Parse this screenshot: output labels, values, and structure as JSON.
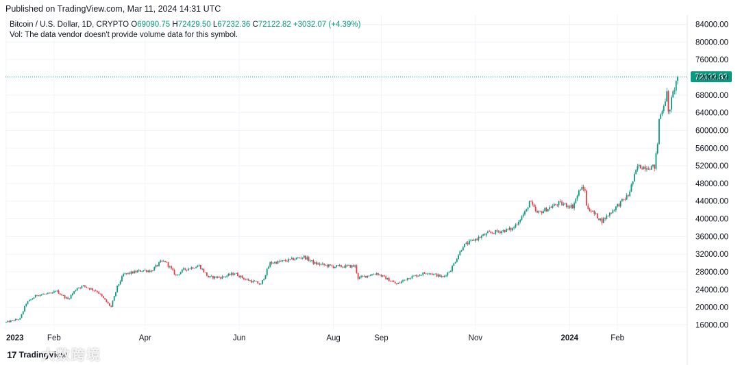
{
  "published": "Published on TradingView.com, Mar 11, 2024 14:31 UTC",
  "legend": {
    "symbol": "Bitcoin / U.S. Dollar, 1D, CRYPTO",
    "open_label": "O",
    "open": "69090.75",
    "high_label": "H",
    "high": "72429.50",
    "low_label": "L",
    "low": "67232.36",
    "close_label": "C",
    "close": "72122.82",
    "change": "+3032.07 (+4.39%)"
  },
  "volume_note": "Vol: The data vendor doesn't provide volume data for this symbol.",
  "logo_text": "TradingView",
  "watermark_text": "大数跨境",
  "colors": {
    "up": "#089981",
    "down": "#f23645",
    "grid": "#f0f3fa",
    "axis_text": "#131722",
    "price_label_bg": "#089981"
  },
  "chart_data": {
    "type": "candlestick",
    "title": "Bitcoin / U.S. Dollar, 1D, CRYPTO",
    "ylim": [
      13000,
      86000
    ],
    "y_ticks": [
      "84000.00",
      "80000.00",
      "76000.00",
      "72000.00",
      "68000.00",
      "64000.00",
      "60000.00",
      "56000.00",
      "52000.00",
      "48000.00",
      "44000.00",
      "40000.00",
      "36000.00",
      "32000.00",
      "28000.00",
      "24000.00",
      "20000.00",
      "16000.00"
    ],
    "x_ticks": [
      {
        "label": "2023",
        "date": "2023-01-01",
        "bold": true
      },
      {
        "label": "Feb",
        "date": "2023-02-01",
        "bold": false
      },
      {
        "label": "Apr",
        "date": "2023-04-01",
        "bold": false
      },
      {
        "label": "Jun",
        "date": "2023-06-01",
        "bold": false
      },
      {
        "label": "Aug",
        "date": "2023-08-01",
        "bold": false
      },
      {
        "label": "Sep",
        "date": "2023-09-01",
        "bold": false
      },
      {
        "label": "Nov",
        "date": "2023-11-01",
        "bold": false
      },
      {
        "label": "2024",
        "date": "2024-01-01",
        "bold": true
      },
      {
        "label": "Feb",
        "date": "2024-02-01",
        "bold": false
      }
    ],
    "last_price": 72122.82,
    "last_price_label": "72122.82",
    "close_path": [
      [
        "2023-01-01",
        16600
      ],
      [
        "2023-01-10",
        17400
      ],
      [
        "2023-01-14",
        20900
      ],
      [
        "2023-01-21",
        22800
      ],
      [
        "2023-01-31",
        23100
      ],
      [
        "2023-02-02",
        23800
      ],
      [
        "2023-02-10",
        21800
      ],
      [
        "2023-02-16",
        24400
      ],
      [
        "2023-02-20",
        24800
      ],
      [
        "2023-03-01",
        23600
      ],
      [
        "2023-03-09",
        20400
      ],
      [
        "2023-03-10",
        20100
      ],
      [
        "2023-03-14",
        24600
      ],
      [
        "2023-03-18",
        27400
      ],
      [
        "2023-03-31",
        28400
      ],
      [
        "2023-04-05",
        28200
      ],
      [
        "2023-04-11",
        30200
      ],
      [
        "2023-04-14",
        30400
      ],
      [
        "2023-04-21",
        27200
      ],
      [
        "2023-04-26",
        28500
      ],
      [
        "2023-05-06",
        29400
      ],
      [
        "2023-05-12",
        26800
      ],
      [
        "2023-05-21",
        26800
      ],
      [
        "2023-05-29",
        27700
      ],
      [
        "2023-06-05",
        26300
      ],
      [
        "2023-06-12",
        25600
      ],
      [
        "2023-06-15",
        25100
      ],
      [
        "2023-06-21",
        30000
      ],
      [
        "2023-07-01",
        30500
      ],
      [
        "2023-07-13",
        31400
      ],
      [
        "2023-07-20",
        29900
      ],
      [
        "2023-08-01",
        29200
      ],
      [
        "2023-08-15",
        29300
      ],
      [
        "2023-08-17",
        26600
      ],
      [
        "2023-08-29",
        27700
      ],
      [
        "2023-09-11",
        25200
      ],
      [
        "2023-09-18",
        26600
      ],
      [
        "2023-10-01",
        27900
      ],
      [
        "2023-10-11",
        26800
      ],
      [
        "2023-10-16",
        28500
      ],
      [
        "2023-10-24",
        33900
      ],
      [
        "2023-11-01",
        35400
      ],
      [
        "2023-11-09",
        36700
      ],
      [
        "2023-11-25",
        37700
      ],
      [
        "2023-12-04",
        41900
      ],
      [
        "2023-12-06",
        44000
      ],
      [
        "2023-12-11",
        41200
      ],
      [
        "2023-12-25",
        43500
      ],
      [
        "2024-01-03",
        42800
      ],
      [
        "2024-01-08",
        46900
      ],
      [
        "2024-01-11",
        46600
      ],
      [
        "2024-01-12",
        42800
      ],
      [
        "2024-01-22",
        39500
      ],
      [
        "2024-02-01",
        43000
      ],
      [
        "2024-02-08",
        45300
      ],
      [
        "2024-02-14",
        51800
      ],
      [
        "2024-02-25",
        51700
      ],
      [
        "2024-02-27",
        57000
      ],
      [
        "2024-02-28",
        62500
      ],
      [
        "2024-03-04",
        68300
      ],
      [
        "2024-03-05",
        63800
      ],
      [
        "2024-03-08",
        68300
      ],
      [
        "2024-03-11",
        72122.82
      ]
    ],
    "date_range": [
      "2023-01-01",
      "2024-03-11"
    ]
  }
}
